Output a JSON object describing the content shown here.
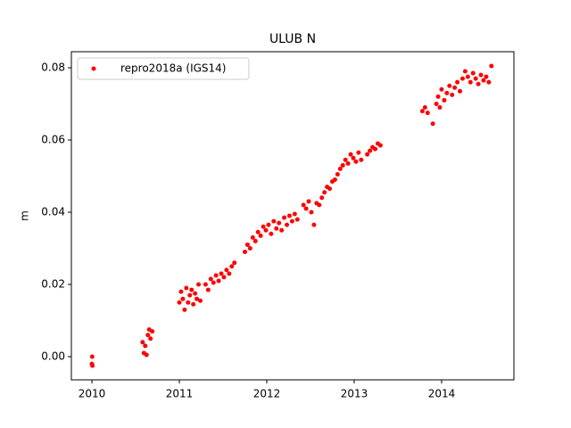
{
  "chart_data": {
    "type": "scatter",
    "title": "ULUB N",
    "ylabel": "m",
    "xlim": [
      2009.765,
      2014.827
    ],
    "ylim": [
      -0.00642,
      0.08444
    ],
    "xticks": [
      2010,
      2011,
      2012,
      2013,
      2014
    ],
    "yticks": [
      {
        "value": 0,
        "label": "0.00"
      },
      0.02,
      0.04,
      0.06,
      0.08
    ],
    "legend": "upper left",
    "series": [
      {
        "name": "repro2018a (IGS14)",
        "color": "#ff0000",
        "x": [
          2010.0,
          2010.003,
          2010.006,
          2010.58,
          2010.595,
          2010.61,
          2010.625,
          2010.64,
          2010.655,
          2010.67,
          2010.69,
          2011.0,
          2011.02,
          2011.04,
          2011.06,
          2011.08,
          2011.1,
          2011.12,
          2011.14,
          2011.16,
          2011.18,
          2011.2,
          2011.22,
          2011.24,
          2011.3,
          2011.33,
          2011.36,
          2011.39,
          2011.42,
          2011.45,
          2011.48,
          2011.51,
          2011.54,
          2011.57,
          2011.6,
          2011.63,
          2011.75,
          2011.78,
          2011.81,
          2011.84,
          2011.87,
          2011.9,
          2011.93,
          2011.96,
          2011.99,
          2012.02,
          2012.05,
          2012.08,
          2012.11,
          2012.14,
          2012.17,
          2012.2,
          2012.23,
          2012.26,
          2012.29,
          2012.32,
          2012.35,
          2012.42,
          2012.45,
          2012.48,
          2012.51,
          2012.54,
          2012.57,
          2012.6,
          2012.63,
          2012.66,
          2012.69,
          2012.72,
          2012.75,
          2012.78,
          2012.81,
          2012.84,
          2012.87,
          2012.9,
          2012.93,
          2012.96,
          2012.99,
          2013.02,
          2013.05,
          2013.08,
          2013.15,
          2013.18,
          2013.21,
          2013.24,
          2013.27,
          2013.3,
          2013.78,
          2013.81,
          2013.84,
          2013.9,
          2013.94,
          2013.96,
          2013.98,
          2014.0,
          2014.03,
          2014.06,
          2014.09,
          2014.12,
          2014.15,
          2014.18,
          2014.21,
          2014.24,
          2014.27,
          2014.3,
          2014.33,
          2014.36,
          2014.39,
          2014.42,
          2014.45,
          2014.48,
          2014.51,
          2014.54,
          2014.57
        ],
        "values": [
          -0.002,
          0.0,
          -0.0025,
          0.004,
          0.001,
          0.003,
          0.0005,
          0.006,
          0.0075,
          0.005,
          0.007,
          0.015,
          0.018,
          0.016,
          0.013,
          0.019,
          0.015,
          0.017,
          0.0185,
          0.0145,
          0.0175,
          0.016,
          0.02,
          0.0155,
          0.02,
          0.0185,
          0.0215,
          0.0205,
          0.0225,
          0.021,
          0.023,
          0.022,
          0.024,
          0.023,
          0.025,
          0.026,
          0.029,
          0.031,
          0.03,
          0.033,
          0.032,
          0.0345,
          0.0335,
          0.036,
          0.035,
          0.0365,
          0.034,
          0.0375,
          0.0355,
          0.037,
          0.035,
          0.0385,
          0.0365,
          0.039,
          0.0375,
          0.0395,
          0.038,
          0.042,
          0.041,
          0.043,
          0.04,
          0.0365,
          0.0425,
          0.042,
          0.044,
          0.0455,
          0.047,
          0.0465,
          0.0485,
          0.049,
          0.0505,
          0.052,
          0.053,
          0.0545,
          0.0535,
          0.056,
          0.055,
          0.054,
          0.0565,
          0.0545,
          0.056,
          0.057,
          0.058,
          0.0575,
          0.059,
          0.0585,
          0.068,
          0.069,
          0.0675,
          0.0645,
          0.07,
          0.072,
          0.069,
          0.074,
          0.071,
          0.073,
          0.075,
          0.0725,
          0.0745,
          0.076,
          0.0735,
          0.077,
          0.079,
          0.0775,
          0.076,
          0.0785,
          0.077,
          0.0755,
          0.078,
          0.0765,
          0.0775,
          0.076,
          0.0805
        ]
      }
    ]
  }
}
